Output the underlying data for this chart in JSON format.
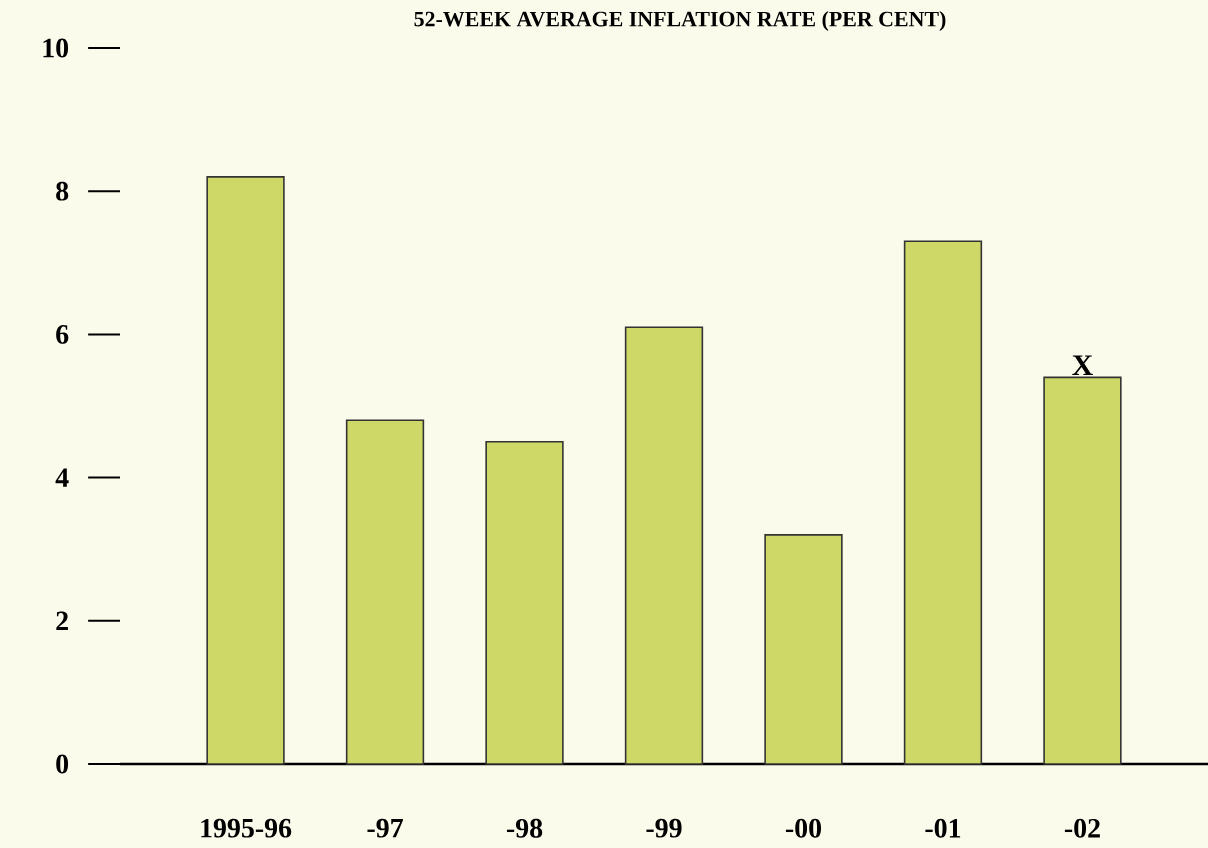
{
  "chart_data": {
    "type": "bar",
    "title": "52-WEEK AVERAGE INFLATION RATE (PER CENT)",
    "categories": [
      "1995-96",
      "-97",
      "-98",
      "-99",
      "-00",
      "-01",
      "-02"
    ],
    "values": [
      8.2,
      4.8,
      4.5,
      6.1,
      3.2,
      7.3,
      5.4
    ],
    "color": "#cdd866",
    "ylim": [
      0,
      10
    ],
    "yticks": [
      0,
      2,
      4,
      6,
      8,
      10
    ],
    "grid": false,
    "annotations": [
      {
        "text": "X",
        "x": "-02",
        "y": 5.4
      }
    ]
  }
}
